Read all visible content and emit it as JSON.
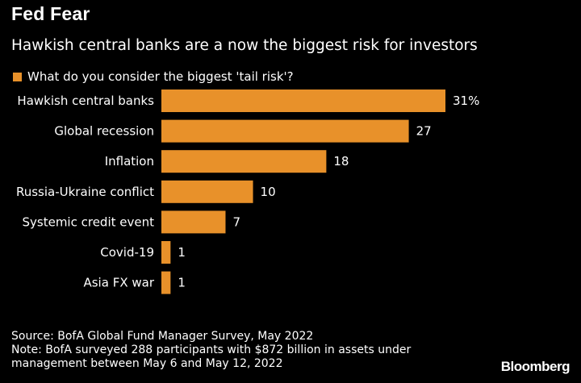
{
  "header": {
    "title": "Fed Fear",
    "subtitle": "Hawkish central banks are a now the biggest risk for investors"
  },
  "colors": {
    "background": "#000000",
    "text": "#ffffff",
    "bar": "#e8912a"
  },
  "chart_data": {
    "type": "bar",
    "orientation": "horizontal",
    "legend": "top-left",
    "grid": false,
    "categories": [
      "Hawkish central banks",
      "Global recession",
      "Inflation",
      "Russia-Ukraine conflict",
      "Systemic credit event",
      "Covid-19",
      "Asia FX war"
    ],
    "series": [
      {
        "name": "What do you consider the biggest 'tail risk'?",
        "values": [
          31,
          27,
          18,
          10,
          7,
          1,
          1
        ]
      }
    ],
    "value_labels": [
      "31%",
      "27",
      "18",
      "10",
      "7",
      "1",
      "1"
    ],
    "xlim": [
      0,
      31
    ]
  },
  "footer": {
    "source": "Source: BofA Global Fund Manager Survey, May 2022",
    "note_line1": "Note: BofA surveyed 288 participants with $872 billion in assets under",
    "note_line2": "management between May 6 and May 12, 2022",
    "logo": "Bloomberg"
  }
}
